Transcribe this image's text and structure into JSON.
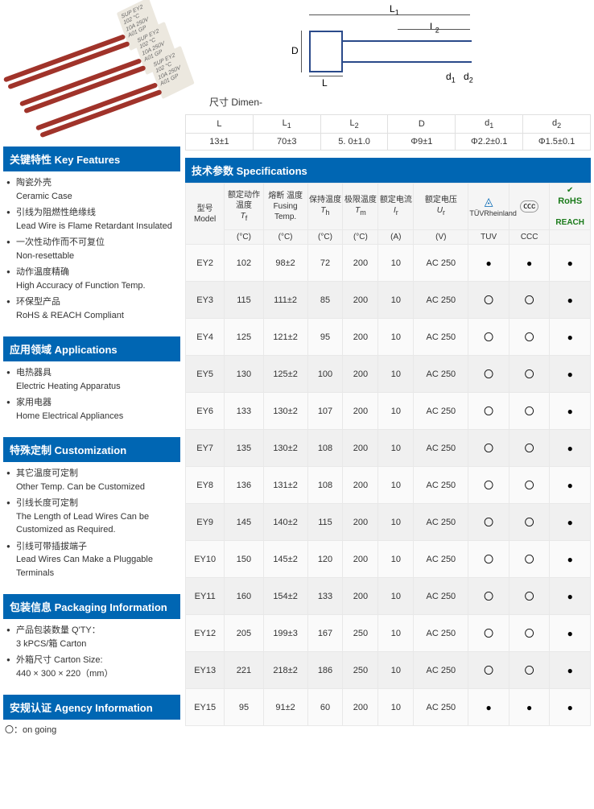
{
  "product_image": {
    "component_label_lines": [
      "SUP EY2",
      "102 °C",
      "10A 250V",
      "A01 GP"
    ]
  },
  "dimensions": {
    "label": "尺寸 Dimen-",
    "headers": [
      "L",
      "L₁",
      "L₂",
      "D",
      "d₁",
      "d₂"
    ],
    "values": [
      "13±1",
      "70±3",
      "5. 0±1.0",
      "Φ9±1",
      "Φ2.2±0.1",
      "Φ1.5±0.1"
    ],
    "labels_on_drawing": {
      "L": "L",
      "L1": "L₁",
      "L2": "L₂",
      "D": "D",
      "d1": "d₁",
      "d2": "d₂"
    }
  },
  "left": {
    "key_features": {
      "title": "关键特性  Key Features",
      "items": [
        {
          "cn": "陶瓷外壳",
          "en": "Ceramic Case"
        },
        {
          "cn": "引线为阻燃性绝缘线",
          "en": "Lead Wire is Flame Retardant Insulated"
        },
        {
          "cn": "一次性动作而不可复位",
          "en": "Non-resettable"
        },
        {
          "cn": "动作温度精确",
          "en": "High Accuracy of Function Temp."
        },
        {
          "cn": "环保型产品",
          "en": "RoHS & REACH Compliant"
        }
      ]
    },
    "applications": {
      "title": "应用领域  Applications",
      "items": [
        {
          "cn": "电热器具",
          "en": "Electric Heating Apparatus"
        },
        {
          "cn": "家用电器",
          "en": "Home Electrical Appliances"
        }
      ]
    },
    "customization": {
      "title": "特殊定制  Customization",
      "items": [
        {
          "cn": "其它温度可定制",
          "en": "Other Temp.  Can be Customized"
        },
        {
          "cn": "引线长度可定制",
          "en": "The Length of Lead Wires Can be Customized as Required."
        },
        {
          "cn": "引线可带插拔端子",
          "en": "Lead Wires Can Make a Pluggable Terminals"
        }
      ]
    },
    "packaging": {
      "title": "包装信息  Packaging Information",
      "items": [
        {
          "cn": "产品包装数量  Q'TY：",
          "en": "3 kPCS/箱  Carton"
        },
        {
          "cn": "外箱尺寸  Carton Size:",
          "en": "440 × 300 × 220（mm）"
        }
      ]
    },
    "agency": {
      "title": "安规认证  Agency Information",
      "legend": "〇：on going"
    }
  },
  "specs": {
    "title": "技术参数  Specifications",
    "head": {
      "model": {
        "cn": "型号",
        "en": "Model"
      },
      "tf": {
        "cn": "额定动作温度",
        "sym": "Tf",
        "unit": "(°C)"
      },
      "fusing": {
        "cn": "熔断 温度",
        "en": "Fusing Temp.",
        "unit": "(°C)"
      },
      "th": {
        "cn": "保持温度",
        "sym": "Th",
        "unit": "(°C)"
      },
      "tm": {
        "cn": "极限温度",
        "sym": "Tm",
        "unit": "(°C)"
      },
      "ir": {
        "cn": "额定电流",
        "sym": "Ir",
        "unit": "(A)"
      },
      "ur": {
        "cn": "额定电压",
        "sym": "Ur",
        "unit": "(V)"
      },
      "tuv": "TUV",
      "ccc": "CCC",
      "rohs": "RoHS",
      "reach": "REACH"
    },
    "rows": [
      {
        "model": "EY2",
        "tf": "102",
        "fusing": "98±2",
        "th": "72",
        "tm": "200",
        "ir": "10",
        "ur": "AC 250",
        "tuv": "●",
        "ccc": "●",
        "rohs": "●"
      },
      {
        "model": "EY3",
        "tf": "115",
        "fusing": "111±2",
        "th": "85",
        "tm": "200",
        "ir": "10",
        "ur": "AC 250",
        "tuv": "〇",
        "ccc": "〇",
        "rohs": "●"
      },
      {
        "model": "EY4",
        "tf": "125",
        "fusing": "121±2",
        "th": "95",
        "tm": "200",
        "ir": "10",
        "ur": "AC 250",
        "tuv": "〇",
        "ccc": "〇",
        "rohs": "●"
      },
      {
        "model": "EY5",
        "tf": "130",
        "fusing": "125±2",
        "th": "100",
        "tm": "200",
        "ir": "10",
        "ur": "AC 250",
        "tuv": "〇",
        "ccc": "〇",
        "rohs": "●"
      },
      {
        "model": "EY6",
        "tf": "133",
        "fusing": "130±2",
        "th": "107",
        "tm": "200",
        "ir": "10",
        "ur": "AC 250",
        "tuv": "〇",
        "ccc": "〇",
        "rohs": "●"
      },
      {
        "model": "EY7",
        "tf": "135",
        "fusing": "130±2",
        "th": "108",
        "tm": "200",
        "ir": "10",
        "ur": "AC 250",
        "tuv": "〇",
        "ccc": "〇",
        "rohs": "●"
      },
      {
        "model": "EY8",
        "tf": "136",
        "fusing": "131±2",
        "th": "108",
        "tm": "200",
        "ir": "10",
        "ur": "AC 250",
        "tuv": "〇",
        "ccc": "〇",
        "rohs": "●"
      },
      {
        "model": "EY9",
        "tf": "145",
        "fusing": "140±2",
        "th": "115",
        "tm": "200",
        "ir": "10",
        "ur": "AC 250",
        "tuv": "〇",
        "ccc": "〇",
        "rohs": "●"
      },
      {
        "model": "EY10",
        "tf": "150",
        "fusing": "145±2",
        "th": "120",
        "tm": "200",
        "ir": "10",
        "ur": "AC 250",
        "tuv": "〇",
        "ccc": "〇",
        "rohs": "●"
      },
      {
        "model": "EY11",
        "tf": "160",
        "fusing": "154±2",
        "th": "133",
        "tm": "200",
        "ir": "10",
        "ur": "AC 250",
        "tuv": "〇",
        "ccc": "〇",
        "rohs": "●"
      },
      {
        "model": "EY12",
        "tf": "205",
        "fusing": "199±3",
        "th": "167",
        "tm": "250",
        "ir": "10",
        "ur": "AC 250",
        "tuv": "〇",
        "ccc": "〇",
        "rohs": "●"
      },
      {
        "model": "EY13",
        "tf": "221",
        "fusing": "218±2",
        "th": "186",
        "tm": "250",
        "ir": "10",
        "ur": "AC 250",
        "tuv": "〇",
        "ccc": "〇",
        "rohs": "●"
      },
      {
        "model": "EY15",
        "tf": "95",
        "fusing": "91±2",
        "th": "60",
        "tm": "200",
        "ir": "10",
        "ur": "AC 250",
        "tuv": "●",
        "ccc": "●",
        "rohs": "●"
      }
    ],
    "colors": {
      "header_bg": "#0066b3",
      "header_fg": "#ffffff",
      "row_odd": "#fafafa",
      "row_even": "#f0f0f0",
      "border": "#e8e8e8"
    }
  }
}
